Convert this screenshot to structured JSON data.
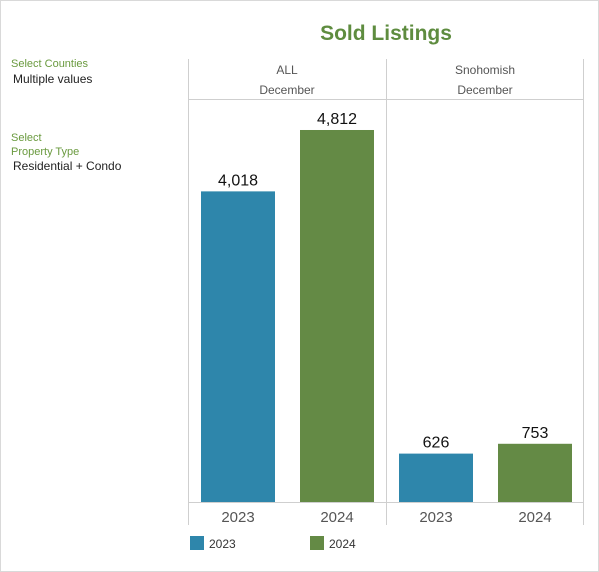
{
  "title": "Sold Listings",
  "filters": [
    {
      "label_lines": [
        "Select Counties"
      ],
      "value": "Multiple values"
    },
    {
      "label_lines": [
        "Select",
        "Property Type"
      ],
      "value": "Residential + Condo"
    }
  ],
  "colors": {
    "2023": "#2e86ab",
    "2024": "#648a45",
    "title": "#5e8c3f",
    "filter_label": "#6a9a3f"
  },
  "chart_data": {
    "type": "bar",
    "title": "Sold Listings",
    "panels": [
      {
        "name": "ALL",
        "month": "December",
        "categories": [
          "2023",
          "2024"
        ],
        "values": [
          4018,
          4812
        ],
        "labels": [
          "4,018",
          "4,812"
        ]
      },
      {
        "name": "Snohomish",
        "month": "December",
        "categories": [
          "2023",
          "2024"
        ],
        "values": [
          626,
          753
        ],
        "labels": [
          "626",
          "753"
        ]
      }
    ],
    "series": [
      {
        "name": "2023"
      },
      {
        "name": "2024"
      }
    ],
    "ylim": [
      0,
      5200
    ],
    "grid": false,
    "legend": "bottom"
  }
}
